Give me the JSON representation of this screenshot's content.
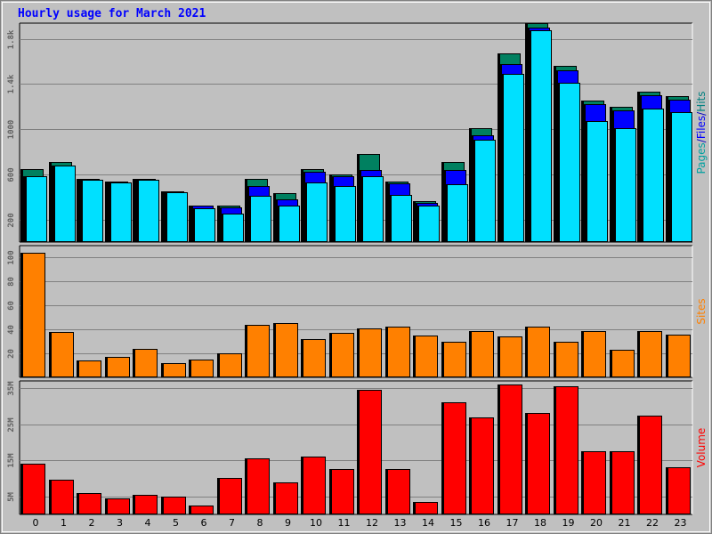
{
  "chart_data": {
    "type": "bar",
    "title": "Hourly usage for March 2021",
    "categories": [
      "0",
      "1",
      "2",
      "3",
      "4",
      "5",
      "6",
      "7",
      "8",
      "9",
      "10",
      "11",
      "12",
      "13",
      "14",
      "15",
      "16",
      "17",
      "18",
      "19",
      "20",
      "21",
      "22",
      "23"
    ],
    "panels": [
      {
        "id": "traffic",
        "ylim": [
          0,
          1940
        ],
        "yticks": [
          200,
          600,
          1000,
          1400,
          1800
        ],
        "ytick_labels": [
          "200",
          "600",
          "1000",
          "1.4k",
          "1.8k"
        ],
        "axis_label_parts": [
          {
            "text": "Pages",
            "color": "#00a0a0"
          },
          {
            "text": "/",
            "color": "#0000c0"
          },
          {
            "text": "Files",
            "color": "#0000ff"
          },
          {
            "text": "/",
            "color": "#0000c0"
          },
          {
            "text": "Hits",
            "color": "#008080"
          }
        ],
        "series": [
          {
            "name": "Hits",
            "color": "#008060",
            "values": [
              650,
              710,
              560,
              540,
              560,
              450,
              320,
              320,
              560,
              430,
              650,
              600,
              780,
              540,
              360,
              710,
              1010,
              1670,
              1940,
              1560,
              1250,
              1200,
              1330,
              1290
            ]
          },
          {
            "name": "Files",
            "color": "#0000ff",
            "values": [
              580,
              680,
              550,
              530,
              550,
              440,
              320,
              310,
              500,
              380,
              620,
              580,
              640,
              520,
              350,
              640,
              950,
              1580,
              1900,
              1520,
              1220,
              1170,
              1300,
              1260
            ]
          },
          {
            "name": "Pages",
            "color": "#00e0ff",
            "values": [
              580,
              680,
              550,
              530,
              550,
              440,
              300,
              250,
              410,
              320,
              530,
              500,
              580,
              420,
              320,
              510,
              910,
              1490,
              1880,
              1410,
              1070,
              1010,
              1180,
              1150
            ]
          }
        ]
      },
      {
        "id": "sites",
        "ylim": [
          0,
          110
        ],
        "yticks": [
          20,
          40,
          60,
          80,
          100
        ],
        "ytick_labels": [
          "20",
          "40",
          "60",
          "80",
          "100"
        ],
        "axis_label_parts": [
          {
            "text": "Sites",
            "color": "#ff8000"
          }
        ],
        "series": [
          {
            "name": "Sites",
            "color": "#ff8000",
            "values": [
              104,
              38,
              14,
              17,
              24,
              12,
              15,
              20,
              44,
              45,
              32,
              37,
              41,
              42,
              35,
              30,
              39,
              34,
              42,
              30,
              39,
              23,
              39,
              36
            ]
          }
        ]
      },
      {
        "id": "volume",
        "ylim": [
          0,
          37
        ],
        "yticks": [
          5,
          15,
          25,
          35
        ],
        "ytick_labels": [
          "5M",
          "15M",
          "25M",
          "35M"
        ],
        "axis_label_parts": [
          {
            "text": "Volume",
            "color": "#ff0000"
          }
        ],
        "series": [
          {
            "name": "Volume",
            "color": "#ff0000",
            "values": [
              14,
              9.5,
              6,
              4.5,
              5.5,
              5,
              2.5,
              10,
              15.5,
              9,
              16,
              12.5,
              34.5,
              12.5,
              3.5,
              31,
              27,
              36,
              28,
              35.5,
              17.5,
              17.5,
              27.5,
              13
            ]
          }
        ]
      }
    ]
  },
  "colors": {
    "background": "#ffffff",
    "frame_bg": "#c0c0c0",
    "plot_bg": "#c0c0c0",
    "grid": "#808080",
    "title": "#0000ff",
    "shadow": "#000000"
  }
}
